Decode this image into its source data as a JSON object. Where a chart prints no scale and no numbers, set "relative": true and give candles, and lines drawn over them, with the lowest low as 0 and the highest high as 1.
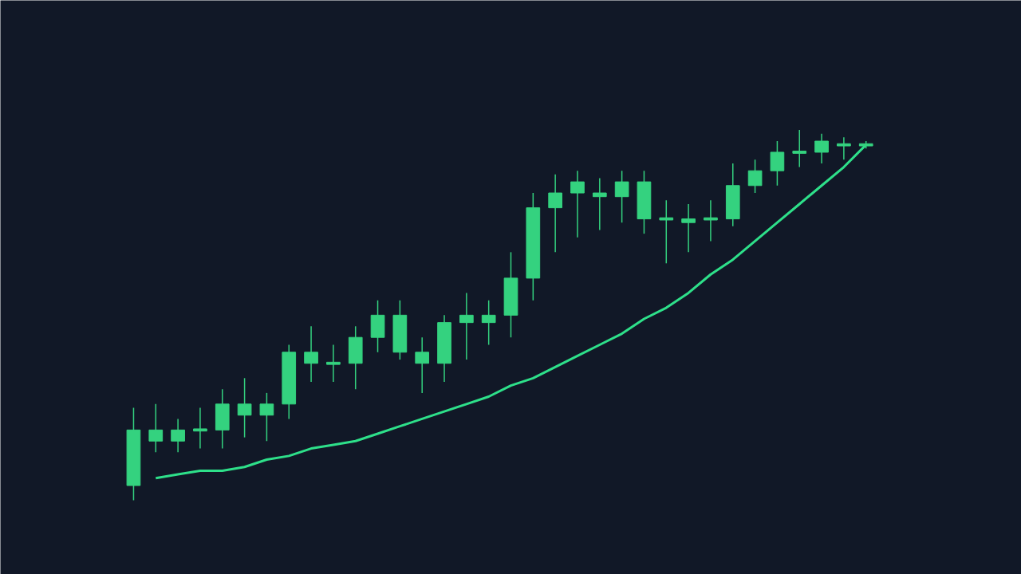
{
  "chart_data": {
    "type": "candlestick",
    "relative": true,
    "color": "#34d27f",
    "categories": [
      null,
      null,
      null,
      null,
      null,
      null,
      null,
      null,
      null,
      null,
      null,
      null,
      null,
      null,
      null,
      null,
      null,
      null,
      null,
      null,
      null,
      null,
      null,
      null,
      null,
      null,
      null,
      null,
      null,
      null,
      null,
      null,
      null,
      null
    ],
    "ohlc": [
      [
        0.04,
        0.25,
        0,
        0.19
      ],
      [
        0.16,
        0.26,
        0.13,
        0.19
      ],
      [
        0.16,
        0.22,
        0.13,
        0.19
      ],
      [
        0.19,
        0.25,
        0.14,
        0.19
      ],
      [
        0.19,
        0.3,
        0.14,
        0.26
      ],
      [
        0.23,
        0.33,
        0.17,
        0.26
      ],
      [
        0.23,
        0.29,
        0.16,
        0.26
      ],
      [
        0.26,
        0.42,
        0.22,
        0.4
      ],
      [
        0.37,
        0.47,
        0.32,
        0.4
      ],
      [
        0.37,
        0.42,
        0.32,
        0.37
      ],
      [
        0.37,
        0.47,
        0.3,
        0.44
      ],
      [
        0.44,
        0.54,
        0.4,
        0.5
      ],
      [
        0.4,
        0.54,
        0.38,
        0.5
      ],
      [
        0.37,
        0.44,
        0.29,
        0.4
      ],
      [
        0.37,
        0.5,
        0.32,
        0.48
      ],
      [
        0.48,
        0.56,
        0.38,
        0.5
      ],
      [
        0.48,
        0.54,
        0.42,
        0.5
      ],
      [
        0.5,
        0.67,
        0.44,
        0.6
      ],
      [
        0.6,
        0.83,
        0.54,
        0.79
      ],
      [
        0.79,
        0.88,
        0.67,
        0.83
      ],
      [
        0.83,
        0.89,
        0.71,
        0.86
      ],
      [
        0.82,
        0.87,
        0.73,
        0.83
      ],
      [
        0.82,
        0.89,
        0.75,
        0.86
      ],
      [
        0.76,
        0.89,
        0.72,
        0.86
      ],
      [
        0.76,
        0.81,
        0.64,
        0.76
      ],
      [
        0.75,
        0.8,
        0.67,
        0.76
      ],
      [
        0.76,
        0.81,
        0.7,
        0.76
      ],
      [
        0.76,
        0.91,
        0.74,
        0.85
      ],
      [
        0.85,
        0.92,
        0.83,
        0.89
      ],
      [
        0.89,
        0.97,
        0.85,
        0.94
      ],
      [
        0.94,
        1,
        0.9,
        0.94
      ],
      [
        0.94,
        0.99,
        0.91,
        0.97
      ],
      [
        0.96,
        0.98,
        0.92,
        0.96
      ],
      [
        0.96,
        0.97,
        0.95,
        0.96
      ]
    ],
    "series": [
      {
        "type": "line",
        "color": "#2ee08a",
        "values": [
          null,
          0.06,
          0.07,
          0.08,
          0.08,
          0.09,
          0.11,
          0.12,
          0.14,
          0.15,
          0.16,
          0.18,
          0.2,
          0.22,
          0.24,
          0.26,
          0.28,
          0.31,
          0.33,
          0.36,
          0.39,
          0.42,
          0.45,
          0.49,
          0.52,
          0.56,
          0.61,
          0.65,
          0.7,
          0.75,
          0.8,
          0.85,
          0.9,
          0.96
        ]
      }
    ]
  }
}
